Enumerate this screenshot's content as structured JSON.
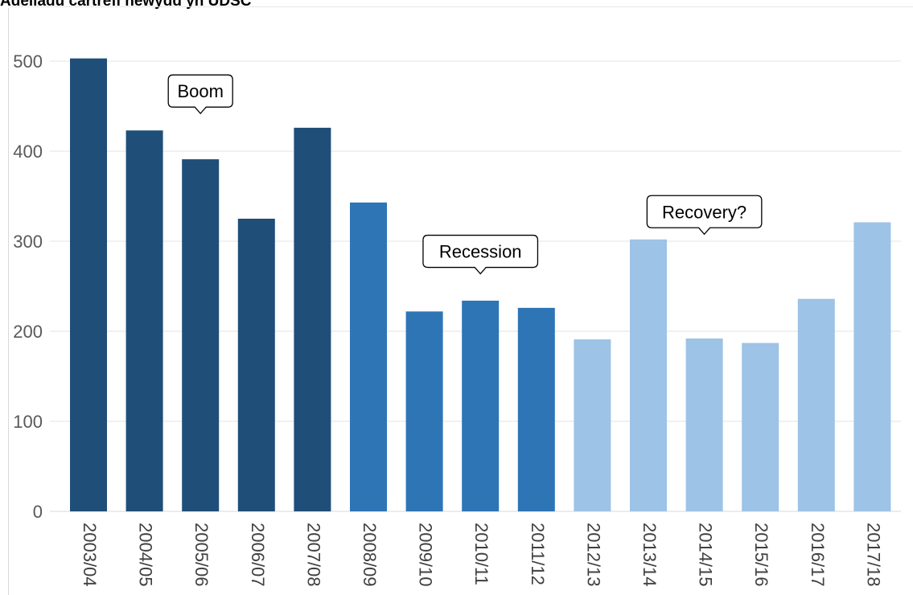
{
  "chart_data": {
    "type": "bar",
    "title": "Adeiladu cartrefi newydd yn UDSC",
    "categories": [
      "2003/04",
      "2004/05",
      "2005/06",
      "2006/07",
      "2007/08",
      "2008/09",
      "2009/10",
      "2010/11",
      "2011/12",
      "2012/13",
      "2013/14",
      "2014/15",
      "2015/16",
      "2016/17",
      "2017/18"
    ],
    "values": [
      503,
      423,
      391,
      325,
      426,
      343,
      222,
      234,
      226,
      191,
      302,
      192,
      187,
      236,
      321
    ],
    "colors": [
      "#1f4e79",
      "#1f4e79",
      "#1f4e79",
      "#1f4e79",
      "#1f4e79",
      "#2e75b6",
      "#2e75b6",
      "#2e75b6",
      "#2e75b6",
      "#9dc3e6",
      "#9dc3e6",
      "#9dc3e6",
      "#9dc3e6",
      "#9dc3e6",
      "#9dc3e6"
    ],
    "ylim": [
      0,
      500
    ],
    "yticks": [
      0,
      100,
      200,
      300,
      400,
      500
    ],
    "grid": true,
    "xlabel": "",
    "ylabel": "",
    "annotations": [
      {
        "text": "Boom",
        "category": "2005/06",
        "value": 440
      },
      {
        "text": "Recession",
        "category": "2010/11",
        "value": 262
      },
      {
        "text": "Recovery?",
        "category": "2014/15",
        "value": 306
      }
    ]
  }
}
